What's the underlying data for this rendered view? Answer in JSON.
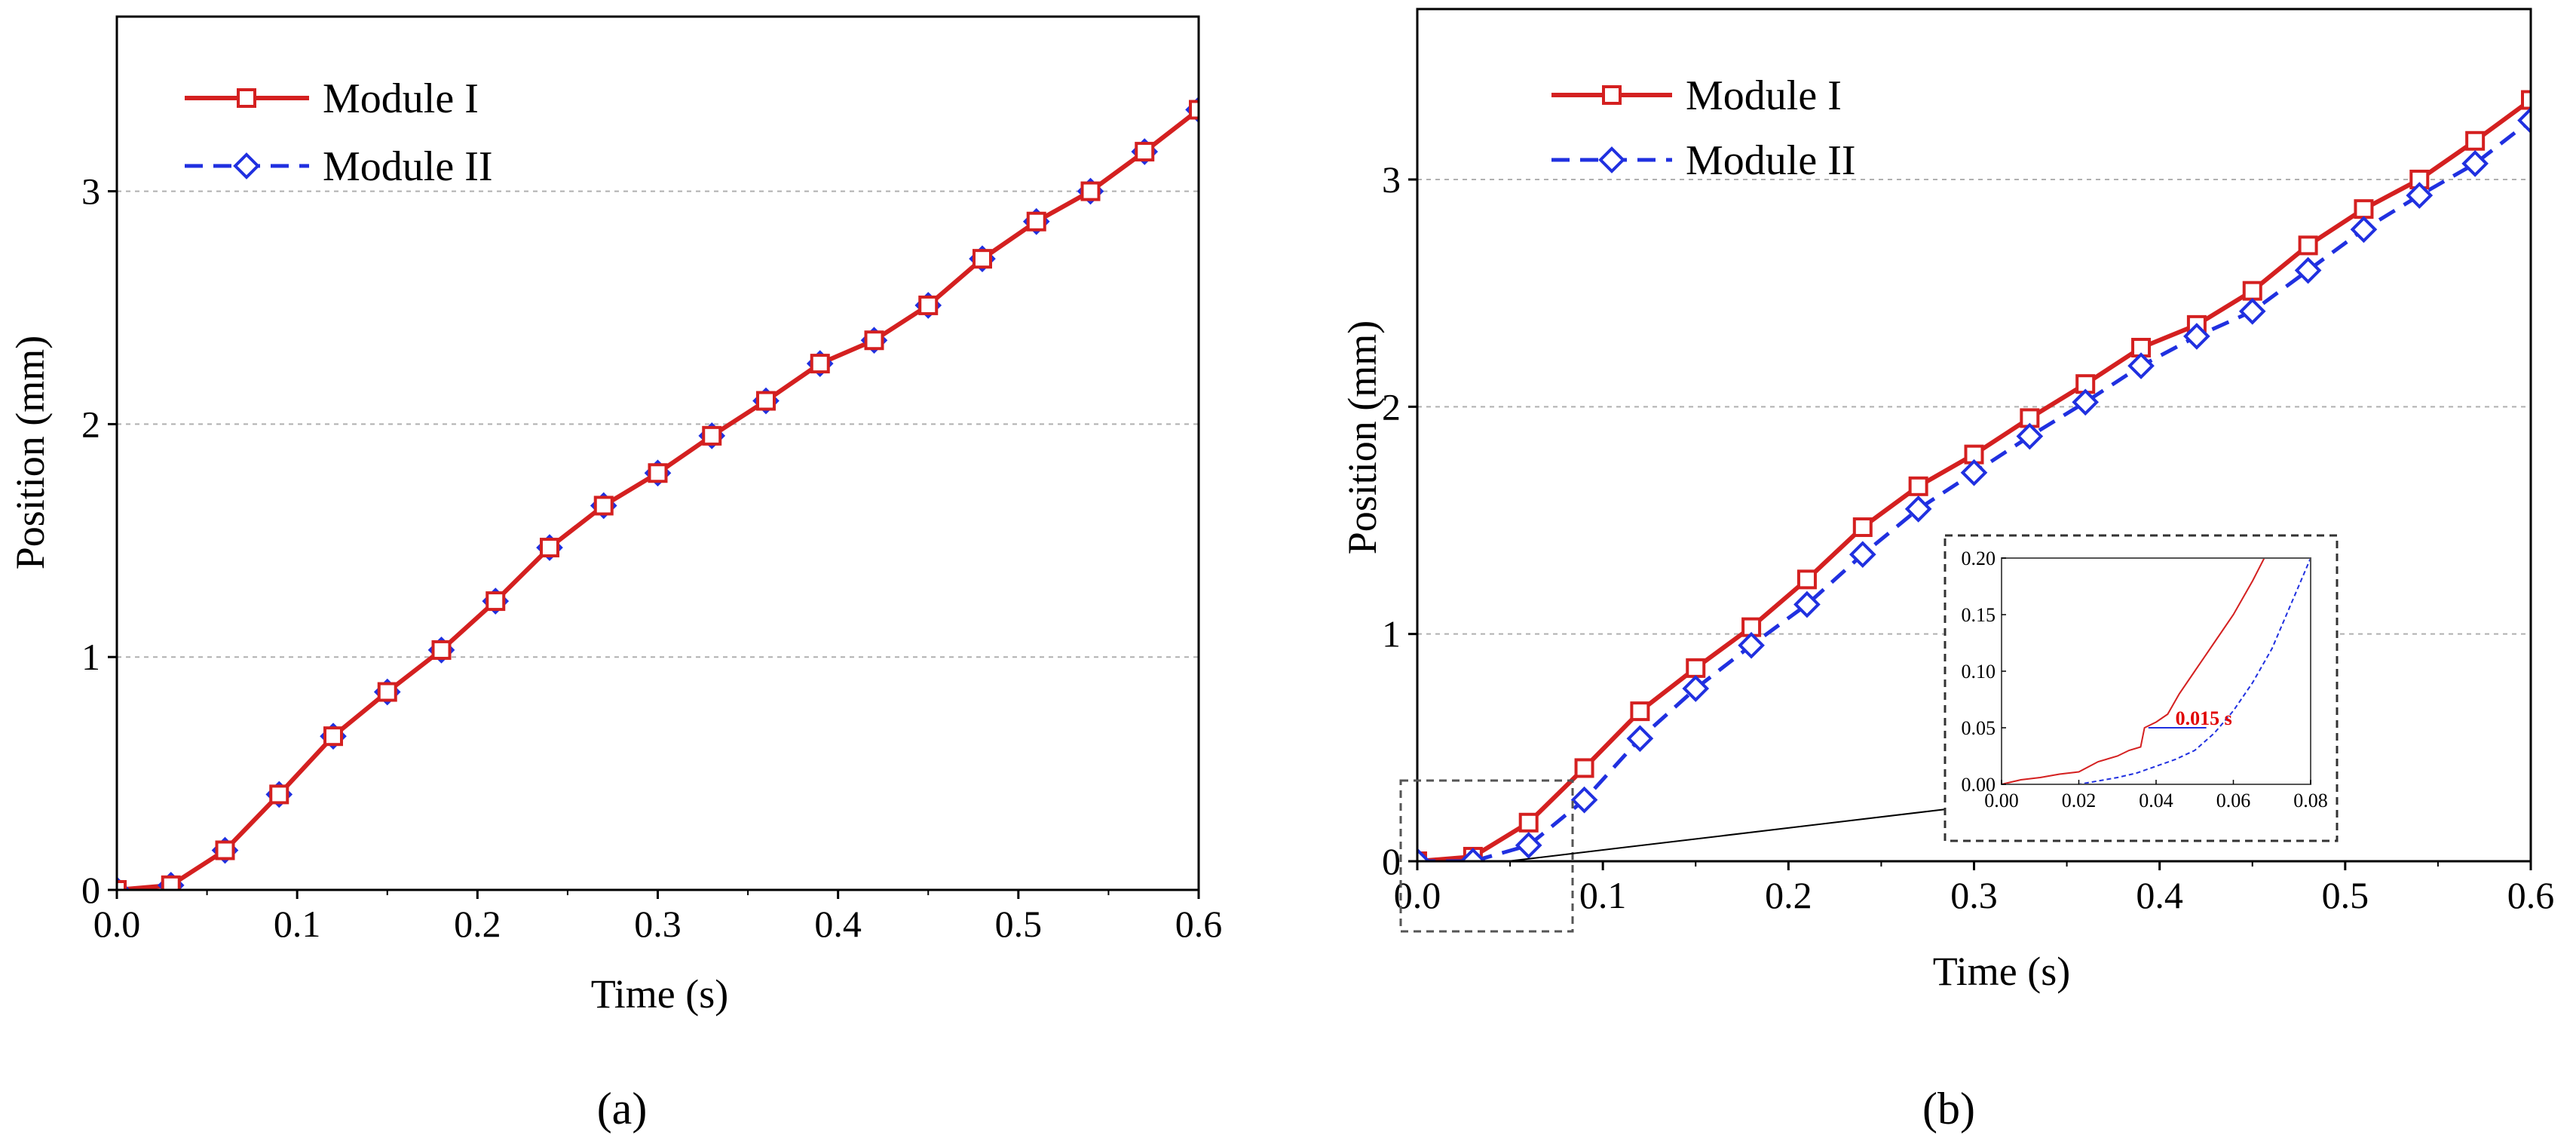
{
  "chart_data": [
    {
      "panel": "a",
      "type": "line",
      "caption": "(a)",
      "xlabel": "Time (s)",
      "ylabel": "Position (mm)",
      "xlim": [
        0,
        0.6
      ],
      "ylim": [
        0,
        3.75
      ],
      "xticks": [
        "0.0",
        "0.1",
        "0.2",
        "0.3",
        "0.4",
        "0.5",
        "0.6"
      ],
      "yticks": [
        "0",
        "1",
        "2",
        "3"
      ],
      "grid": "horizontal dashed",
      "legend_position": "top-left",
      "series": [
        {
          "name": "Module I",
          "color": "#d42020",
          "marker": "square",
          "line": "solid",
          "x": [
            0.0,
            0.03,
            0.06,
            0.09,
            0.12,
            0.15,
            0.18,
            0.21,
            0.24,
            0.27,
            0.3,
            0.33,
            0.36,
            0.39,
            0.42,
            0.45,
            0.48,
            0.51,
            0.54,
            0.57,
            0.6
          ],
          "y": [
            0.0,
            0.02,
            0.17,
            0.41,
            0.66,
            0.85,
            1.03,
            1.24,
            1.47,
            1.65,
            1.79,
            1.95,
            2.1,
            2.26,
            2.36,
            2.51,
            2.71,
            2.87,
            3.0,
            3.17,
            3.35
          ]
        },
        {
          "name": "Module II",
          "color": "#2030e0",
          "marker": "diamond",
          "line": "dashed",
          "x": [
            0.0,
            0.03,
            0.06,
            0.09,
            0.12,
            0.15,
            0.18,
            0.21,
            0.24,
            0.27,
            0.3,
            0.33,
            0.36,
            0.39,
            0.42,
            0.45,
            0.48,
            0.51,
            0.54,
            0.57,
            0.6
          ],
          "y": [
            0.0,
            0.02,
            0.17,
            0.41,
            0.66,
            0.85,
            1.03,
            1.24,
            1.47,
            1.65,
            1.79,
            1.95,
            2.1,
            2.26,
            2.36,
            2.51,
            2.71,
            2.87,
            3.0,
            3.17,
            3.35
          ]
        }
      ]
    },
    {
      "panel": "b",
      "type": "line",
      "caption": "(b)",
      "xlabel": "Time (s)",
      "ylabel": "Position (mm)",
      "xlim": [
        0,
        0.6
      ],
      "ylim": [
        0,
        3.75
      ],
      "xticks": [
        "0.0",
        "0.1",
        "0.2",
        "0.3",
        "0.4",
        "0.5",
        "0.6"
      ],
      "yticks": [
        "0",
        "1",
        "2",
        "3"
      ],
      "grid": "horizontal dashed",
      "legend_position": "top-left",
      "series": [
        {
          "name": "Module I",
          "color": "#d42020",
          "marker": "square",
          "line": "solid",
          "x": [
            0.0,
            0.03,
            0.06,
            0.09,
            0.12,
            0.15,
            0.18,
            0.21,
            0.24,
            0.27,
            0.3,
            0.33,
            0.36,
            0.39,
            0.42,
            0.45,
            0.48,
            0.51,
            0.54,
            0.57,
            0.6
          ],
          "y": [
            0.0,
            0.02,
            0.17,
            0.41,
            0.66,
            0.85,
            1.03,
            1.24,
            1.47,
            1.65,
            1.79,
            1.95,
            2.1,
            2.26,
            2.36,
            2.51,
            2.71,
            2.87,
            3.0,
            3.17,
            3.35
          ]
        },
        {
          "name": "Module II",
          "color": "#2030e0",
          "marker": "diamond",
          "line": "dashed",
          "x": [
            0.0,
            0.03,
            0.06,
            0.09,
            0.12,
            0.15,
            0.18,
            0.21,
            0.24,
            0.27,
            0.3,
            0.33,
            0.36,
            0.39,
            0.42,
            0.45,
            0.48,
            0.51,
            0.54,
            0.57,
            0.6
          ],
          "y": [
            0.0,
            0.0,
            0.07,
            0.27,
            0.54,
            0.76,
            0.95,
            1.13,
            1.35,
            1.55,
            1.71,
            1.87,
            2.02,
            2.18,
            2.31,
            2.42,
            2.6,
            2.78,
            2.93,
            3.07,
            3.26
          ]
        }
      ],
      "inset": {
        "xlim": [
          0,
          0.08
        ],
        "ylim": [
          0,
          0.2
        ],
        "xticks": [
          "0.00",
          "0.02",
          "0.04",
          "0.06",
          "0.08"
        ],
        "yticks": [
          "0.00",
          "0.05",
          "0.10",
          "0.15",
          "0.20"
        ],
        "annotation": "0.015 s",
        "annotation_color": "#e00000",
        "annotation_at": [
          0.045,
          0.05
        ],
        "series": [
          {
            "name": "Module I",
            "color": "#d42020",
            "line": "solid",
            "x": [
              0.0,
              0.005,
              0.01,
              0.015,
              0.02,
              0.025,
              0.03,
              0.033,
              0.036,
              0.037,
              0.04,
              0.043,
              0.046,
              0.05,
              0.055,
              0.06,
              0.065,
              0.068
            ],
            "y": [
              0.0,
              0.004,
              0.006,
              0.009,
              0.011,
              0.02,
              0.025,
              0.03,
              0.033,
              0.05,
              0.055,
              0.062,
              0.08,
              0.1,
              0.125,
              0.15,
              0.18,
              0.2
            ]
          },
          {
            "name": "Module II",
            "color": "#2030e0",
            "line": "dashed",
            "x": [
              0.0,
              0.01,
              0.02,
              0.025,
              0.03,
              0.035,
              0.04,
              0.045,
              0.05,
              0.055,
              0.06,
              0.065,
              0.07,
              0.075,
              0.08
            ],
            "y": [
              0.0,
              0.0,
              0.0,
              0.003,
              0.006,
              0.01,
              0.016,
              0.022,
              0.03,
              0.045,
              0.065,
              0.09,
              0.12,
              0.16,
              0.2
            ]
          }
        ]
      }
    }
  ]
}
